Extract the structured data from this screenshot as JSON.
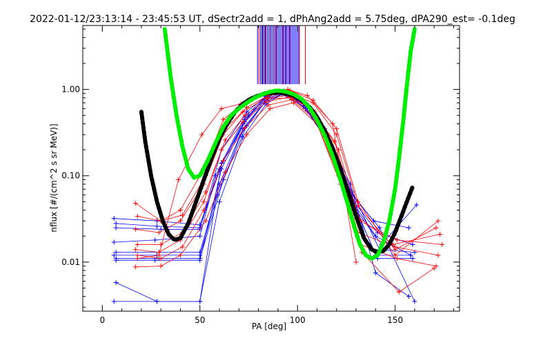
{
  "chart_data": {
    "type": "line",
    "title": "2022-01-12/23:13:14 - 23:45:53 UT, dSectr2add = 1, dPhAng2add = 5.75deg, dPA290_est=  -0.1deg",
    "xlabel": "PA [deg]",
    "ylabel": "nflux [#/(cm^2 s sr MeV)]",
    "xlim": [
      -10,
      183
    ],
    "ylim": [
      0.0027,
      5.5
    ],
    "yscale": "log",
    "xticks": [
      0,
      50,
      100,
      150
    ],
    "xtick_labels": [
      "0",
      "50",
      "100",
      "150"
    ],
    "yticks": [
      0.01,
      0.1,
      1.0
    ],
    "ytick_labels": [
      "0.01",
      "0.10",
      "1.00"
    ],
    "grid": false,
    "series": [
      {
        "color": "#0000ff",
        "style": "lines+plus",
        "curves": [
          {
            "x": [
              6,
              28,
              50,
              62,
              75,
              85,
              93,
              104,
              115,
              128,
              142,
              160
            ],
            "y": [
              0.032,
              0.03,
              0.027,
              0.15,
              0.5,
              0.85,
              0.95,
              0.7,
              0.3,
              0.06,
              0.025,
              0.0035
            ]
          },
          {
            "x": [
              7,
              28,
              50,
              60,
              73,
              84,
              92,
              103,
              114,
              127,
              140,
              158
            ],
            "y": [
              0.028,
              0.026,
              0.025,
              0.12,
              0.45,
              0.82,
              0.93,
              0.68,
              0.28,
              0.055,
              0.02,
              0.012
            ]
          },
          {
            "x": [
              7,
              30,
              50,
              61,
              74,
              85,
              94,
              105,
              116,
              129,
              141,
              159
            ],
            "y": [
              0.025,
              0.024,
              0.024,
              0.2,
              0.55,
              0.88,
              0.92,
              0.62,
              0.26,
              0.05,
              0.022,
              0.016
            ]
          },
          {
            "x": [
              6,
              27,
              50,
              58,
              72,
              83,
              91,
              102,
              113,
              126,
              139,
              157
            ],
            "y": [
              0.017,
              0.018,
              0.02,
              0.1,
              0.4,
              0.78,
              0.94,
              0.72,
              0.33,
              0.07,
              0.03,
              0.025
            ]
          },
          {
            "x": [
              7,
              29,
              50,
              60,
              72,
              84,
              93,
              104,
              115,
              128,
              142,
              160
            ],
            "y": [
              0.013,
              0.013,
              0.013,
              0.08,
              0.35,
              0.75,
              0.9,
              0.66,
              0.3,
              0.065,
              0.014,
              0.013
            ]
          },
          {
            "x": [
              6,
              28,
              50,
              59,
              71,
              83,
              92,
              103,
              114,
              127,
              140,
              158
            ],
            "y": [
              0.012,
              0.012,
              0.012,
              0.06,
              0.3,
              0.7,
              0.88,
              0.64,
              0.29,
              0.06,
              0.012,
              0.012
            ]
          },
          {
            "x": [
              7,
              29,
              50,
              62,
              74,
              85,
              94,
              104,
              116,
              129,
              141,
              159
            ],
            "y": [
              0.011,
              0.011,
              0.011,
              0.09,
              0.38,
              0.8,
              0.93,
              0.6,
              0.24,
              0.045,
              0.011,
              0.011
            ]
          },
          {
            "x": [
              7,
              27,
              50,
              61,
              73,
              86,
              95,
              105,
              117,
              130,
              143,
              161
            ],
            "y": [
              0.0105,
              0.0105,
              0.0105,
              0.12,
              0.42,
              0.86,
              0.9,
              0.56,
              0.22,
              0.04,
              0.016,
              0.046
            ]
          },
          {
            "x": [
              7,
              28,
              50,
              61,
              73,
              84,
              93
            ],
            "y": [
              0.0058,
              0.0035,
              0.0035,
              0.14,
              0.48,
              0.84,
              0.96
            ]
          },
          {
            "x": [
              6,
              28,
              50,
              60,
              72,
              84,
              92,
              103,
              114,
              127,
              140,
              157
            ],
            "y": [
              0.0035,
              0.0035,
              0.0035,
              0.05,
              0.28,
              0.68,
              0.88,
              0.7,
              0.35,
              0.08,
              0.0075,
              0.004
            ]
          }
        ]
      },
      {
        "color": "#ff0000",
        "style": "lines+plus",
        "curves": [
          {
            "x": [
              17,
              30,
              40,
              52,
              62,
              73,
              84,
              96,
              108,
              120,
              131,
              150,
              172
            ],
            "y": [
              0.048,
              0.03,
              0.04,
              0.12,
              0.45,
              0.7,
              0.9,
              0.98,
              0.75,
              0.35,
              0.05,
              0.012,
              0.03
            ]
          },
          {
            "x": [
              18,
              30,
              41,
              53,
              63,
              74,
              85,
              96,
              108,
              120,
              131,
              150,
              171
            ],
            "y": [
              0.034,
              0.03,
              0.035,
              0.1,
              0.35,
              0.62,
              0.85,
              0.9,
              0.7,
              0.3,
              0.045,
              0.014,
              0.025
            ]
          },
          {
            "x": [
              17,
              29,
              40,
              52,
              62,
              72,
              84,
              95,
              107,
              119,
              130,
              149,
              173
            ],
            "y": [
              0.024,
              0.022,
              0.03,
              0.08,
              0.3,
              0.55,
              0.8,
              0.85,
              0.6,
              0.25,
              0.035,
              0.016,
              0.021
            ]
          },
          {
            "x": [
              18,
              30,
              41,
              53,
              63,
              73,
              85,
              97,
              109,
              121,
              132,
              151,
              174
            ],
            "y": [
              0.016,
              0.016,
              0.022,
              0.065,
              0.26,
              0.5,
              0.78,
              0.8,
              0.55,
              0.2,
              0.03,
              0.018,
              0.016
            ]
          },
          {
            "x": [
              17,
              29,
              40,
              52,
              61,
              72,
              84,
              96,
              108,
              120,
              131,
              150,
              172
            ],
            "y": [
              0.014,
              0.013,
              0.018,
              0.05,
              0.2,
              0.42,
              0.72,
              0.82,
              0.5,
              0.15,
              0.022,
              0.015,
              0.012
            ]
          },
          {
            "x": [
              18,
              30,
              41,
              52,
              62,
              73,
              85,
              97,
              109,
              121,
              132,
              151,
              171
            ],
            "y": [
              0.012,
              0.011,
              0.015,
              0.04,
              0.15,
              0.36,
              0.66,
              0.76,
              0.45,
              0.1,
              0.016,
              0.011,
              0.009
            ]
          },
          {
            "x": [
              17,
              30,
              40,
              53,
              63,
              74,
              86,
              98,
              110,
              122,
              133,
              152,
              170
            ],
            "y": [
              0.0088,
              0.009,
              0.012,
              0.03,
              0.11,
              0.3,
              0.6,
              0.7,
              0.4,
              0.08,
              0.013,
              0.0045,
              0.0085
            ]
          },
          {
            "x": [
              18,
              29,
              39,
              51,
              61,
              71,
              83,
              95,
              105,
              118,
              130
            ],
            "y": [
              0.011,
              0.012,
              0.09,
              0.3,
              0.6,
              0.68,
              0.9,
              1.0,
              0.85,
              0.4,
              0.01
            ]
          }
        ]
      },
      {
        "color": "#000000",
        "style": "thick-dotted",
        "x": [
          20,
          22,
          25,
          28,
          31,
          34,
          37,
          40,
          44,
          48,
          52,
          56,
          60,
          64,
          68,
          72,
          76,
          80,
          84,
          88,
          91,
          94,
          98,
          102,
          106,
          110,
          114,
          118,
          122,
          126,
          130,
          134,
          138,
          141,
          144,
          147,
          150,
          153,
          156,
          159
        ],
        "y": [
          0.55,
          0.25,
          0.1,
          0.05,
          0.03,
          0.021,
          0.018,
          0.019,
          0.028,
          0.05,
          0.09,
          0.16,
          0.27,
          0.4,
          0.55,
          0.68,
          0.78,
          0.85,
          0.9,
          0.92,
          0.92,
          0.9,
          0.85,
          0.76,
          0.63,
          0.48,
          0.33,
          0.21,
          0.12,
          0.065,
          0.034,
          0.019,
          0.014,
          0.013,
          0.0135,
          0.016,
          0.022,
          0.033,
          0.05,
          0.075
        ]
      },
      {
        "color": "#00ee00",
        "style": "thick-dotted",
        "x": [
          32,
          35,
          38,
          41,
          44,
          47,
          50,
          54,
          58,
          62,
          66,
          70,
          74,
          78,
          82,
          86,
          89,
          92,
          95,
          98,
          102,
          106,
          110,
          114,
          118,
          122,
          126,
          129,
          132,
          135,
          138,
          141,
          144,
          147,
          150,
          152,
          154,
          156,
          158,
          160
        ],
        "y": [
          5.0,
          1.4,
          0.5,
          0.22,
          0.12,
          0.095,
          0.1,
          0.15,
          0.24,
          0.37,
          0.5,
          0.6,
          0.7,
          0.8,
          0.88,
          0.94,
          0.97,
          0.96,
          0.93,
          0.88,
          0.78,
          0.62,
          0.44,
          0.29,
          0.17,
          0.09,
          0.045,
          0.026,
          0.016,
          0.012,
          0.011,
          0.012,
          0.017,
          0.03,
          0.07,
          0.16,
          0.4,
          1.1,
          2.8,
          5.0
        ]
      }
    ],
    "vertical_markers": {
      "y_top": 5.5,
      "y_bottom": 1.15,
      "blue_x": [
        79.5,
        81,
        81.7,
        82.4,
        83.1,
        83.8,
        84.5,
        85.2,
        85.9,
        86.6,
        87.3,
        88,
        88.7,
        89.4,
        90.1,
        90.8,
        91.5,
        92.2,
        92.9,
        93.6,
        94.3,
        95,
        95.7,
        96.4,
        97.1,
        97.8,
        98.5,
        99.2,
        99.9,
        100.6
      ],
      "red_x": [
        80.2,
        83.5,
        86,
        89,
        92.5,
        96,
        101,
        104
      ],
      "purple_x": [
        82,
        88,
        94
      ]
    }
  }
}
